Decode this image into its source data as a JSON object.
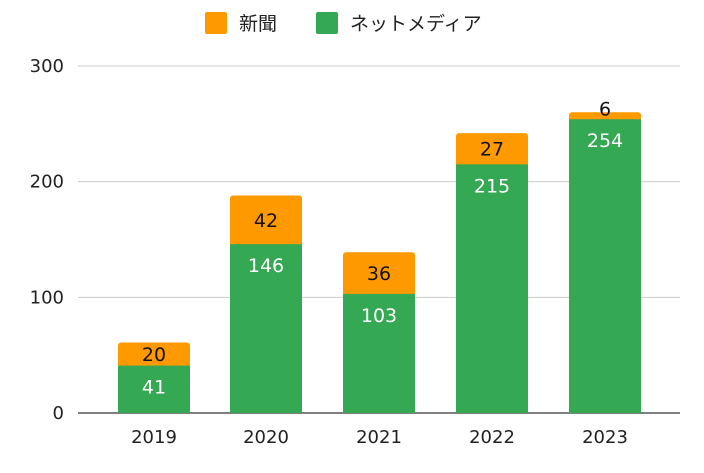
{
  "chart_data": {
    "type": "bar",
    "stacked": true,
    "categories": [
      "2019",
      "2020",
      "2021",
      "2022",
      "2023"
    ],
    "series": [
      {
        "name": "新聞",
        "values": [
          20,
          42,
          36,
          27,
          6
        ],
        "color": "#ff9900"
      },
      {
        "name": "ネットメディア",
        "values": [
          41,
          146,
          103,
          215,
          254
        ],
        "color": "#34a853"
      }
    ],
    "stack_order_bottom_to_top": [
      "ネットメディア",
      "新聞"
    ],
    "ylim": [
      0,
      300
    ],
    "yticks": [
      "0",
      "100",
      "200",
      "300"
    ],
    "grid": true,
    "legend_position": "top-center",
    "data_labels": true,
    "title": "",
    "xlabel": "",
    "ylabel": ""
  }
}
